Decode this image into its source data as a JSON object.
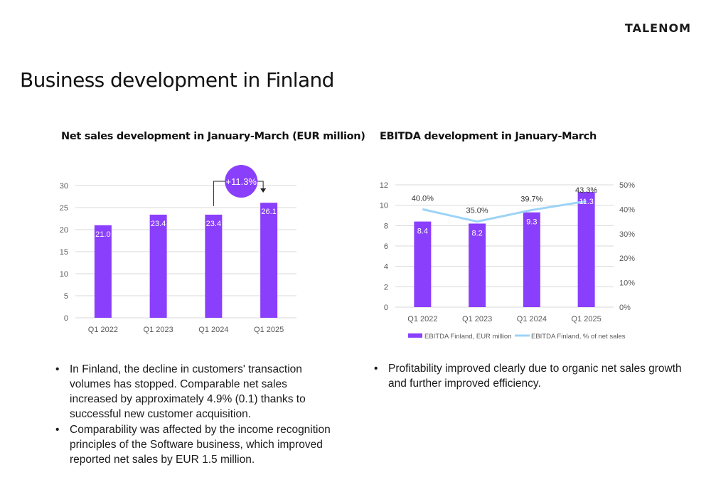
{
  "logo": "TALENOM",
  "page_title": "Business development in Finland",
  "chart_data": [
    {
      "type": "bar",
      "title": "Net sales development in January-March (EUR million)",
      "categories": [
        "Q1 2022",
        "Q1 2023",
        "Q1 2024",
        "Q1 2025"
      ],
      "values": [
        21.0,
        23.4,
        23.4,
        26.1
      ],
      "value_labels": [
        "21.0",
        "23.4",
        "23.4",
        "26.1"
      ],
      "ylim": [
        0,
        30
      ],
      "yticks": [
        0,
        5,
        10,
        15,
        20,
        25,
        30
      ],
      "grid": true,
      "bar_color": "#8a3ffc",
      "annotation": {
        "text": "+11.3%",
        "from": "Q1 2024",
        "to": "Q1 2025"
      }
    },
    {
      "type": "bar+line",
      "title": "EBITDA development in January-March",
      "categories": [
        "Q1 2022",
        "Q1 2023",
        "Q1 2024",
        "Q1 2025"
      ],
      "series": [
        {
          "name": "EBITDA Finland, EUR million",
          "type": "bar",
          "axis": "left",
          "values": [
            8.4,
            8.2,
            9.3,
            11.3
          ],
          "labels": [
            "8.4",
            "8.2",
            "9.3",
            "11.3"
          ],
          "color": "#8a3ffc"
        },
        {
          "name": "EBITDA Finland, % of net sales",
          "type": "line",
          "axis": "right",
          "values": [
            40.0,
            35.0,
            39.7,
            43.3
          ],
          "labels": [
            "40.0%",
            "35.0%",
            "39.7%",
            "43.3%"
          ],
          "color": "#9dd3f7"
        }
      ],
      "ylim_left": [
        0,
        12
      ],
      "yticks_left": [
        0,
        2,
        4,
        6,
        8,
        10,
        12
      ],
      "ylim_right": [
        0,
        50
      ],
      "yticks_right": [
        "0%",
        "10%",
        "20%",
        "30%",
        "40%",
        "50%"
      ],
      "grid": true,
      "legend_position": "bottom"
    }
  ],
  "bullets_left": [
    "In Finland, the decline in customers' transaction volumes has stopped. Comparable net sales increased by approximately 4.9% (0.1) thanks to successful new customer acquisition.",
    "Comparability was affected by the income recognition principles of the Software business, which improved reported net sales by EUR 1.5 million."
  ],
  "bullets_right": [
    "Profitability improved clearly due to organic net sales growth and further improved efficiency."
  ],
  "colors": {
    "accent": "#8a3ffc",
    "line": "#9dd3f7",
    "grid": "#d9d9d9",
    "axis_text": "#595959"
  }
}
